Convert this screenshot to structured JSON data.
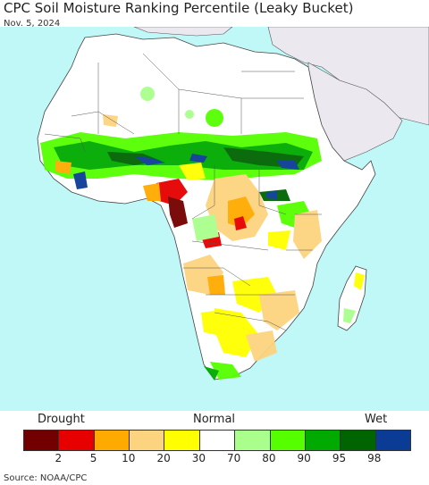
{
  "title": "CPC Soil Moisture Ranking Percentile (Leaky Bucket)",
  "date": "Nov. 5, 2024",
  "legend": {
    "left_label": "Drought",
    "center_label": "Normal",
    "right_label": "Wet",
    "colors": [
      "#730000",
      "#e60000",
      "#ffaa00",
      "#fcd37f",
      "#ffff00",
      "#ffffff",
      "#aaff8c",
      "#55ff00",
      "#00aa00",
      "#006400",
      "#0a3c96"
    ],
    "ticks": [
      "2",
      "5",
      "10",
      "20",
      "30",
      "70",
      "80",
      "90",
      "95",
      "98"
    ]
  },
  "map": {
    "ocean_color": "#c0f8f8",
    "land_color": "#ffffff",
    "non_africa_color": "#ece8f0"
  },
  "source": "Source: NOAA/CPC"
}
